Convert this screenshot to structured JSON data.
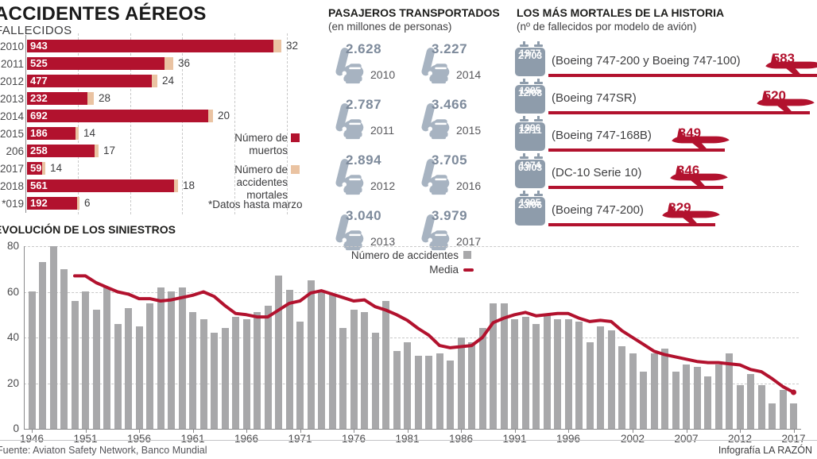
{
  "header": {
    "title": "ACCIDENTES AÉREOS"
  },
  "fallecidos": {
    "label": "FALLECIDOS",
    "legend": {
      "muertos_lines": [
        "Número de",
        "muertos"
      ],
      "accidentes_lines": [
        "Número de",
        "accidentes",
        "mortales"
      ]
    },
    "footnote": "*Datos hasta marzo"
  },
  "pasajeros": {
    "title": "PASAJEROS TRANSPORTADOS",
    "subtitle": "(en millones de personas)"
  },
  "mortales": {
    "title": "LOS MÁS MORTALES DE LA HISTORIA",
    "subtitle": "(nº de fallecidos por modelo de avión)"
  },
  "evolucion": {
    "title": "EVOLUCIÓN DE LOS SINIESTROS",
    "legend": {
      "accidentes": "Número de accidentes",
      "media": "Media"
    }
  },
  "footer": {
    "source": "Fuente: Aviaton Safety Network, Banco Mundial",
    "credit": "Infografía LA RAZÓN"
  },
  "colors": {
    "red": "#b2122e",
    "tan": "#eac3a2",
    "gray_bar": "#a8a8aa",
    "seat_icon": "#a7b3c1",
    "calendar": "#8e9cab",
    "passenger_number": "#7d8a9b"
  },
  "chart_data": [
    {
      "id": "fallecidos",
      "type": "bar",
      "orientation": "horizontal",
      "title": "FALLECIDOS",
      "categories": [
        "2010",
        "2011",
        "2012",
        "2013",
        "2014",
        "2015",
        "206",
        "2017",
        "2018",
        "019*"
      ],
      "series": [
        {
          "name": "Número de muertos",
          "values": [
            943,
            525,
            477,
            232,
            692,
            186,
            258,
            59,
            561,
            192
          ]
        },
        {
          "name": "Número de accidentes mortales",
          "values": [
            32,
            36,
            24,
            28,
            20,
            14,
            17,
            14,
            18,
            6
          ]
        }
      ],
      "xlim": [
        0,
        1100
      ],
      "gridlines_every": 200,
      "footnote": "*Datos hasta marzo"
    },
    {
      "id": "pasajeros",
      "type": "pictogram",
      "title": "PASAJEROS TRANSPORTADOS",
      "subtitle": "(en millones de personas)",
      "items": [
        {
          "value": "2.628",
          "year": "2010"
        },
        {
          "value": "3.227",
          "year": "2014"
        },
        {
          "value": "2.787",
          "year": "2011"
        },
        {
          "value": "3.466",
          "year": "2015"
        },
        {
          "value": "2.894",
          "year": "2012"
        },
        {
          "value": "3.705",
          "year": "2016"
        },
        {
          "value": "3.040",
          "year": "2013"
        },
        {
          "value": "3.979",
          "year": "2017"
        }
      ]
    },
    {
      "id": "mortales",
      "type": "bar",
      "orientation": "horizontal",
      "title": "LOS MÁS MORTALES DE LA HISTORIA",
      "subtitle": "(nº de fallecidos por modelo de avión)",
      "items": [
        {
          "date": "27/03",
          "year": "1977",
          "model": "(Boeing 747-200 y Boeing 747-100)",
          "value": 583
        },
        {
          "date": "12/08",
          "year": "1985",
          "model": "(Boeing 747SR)",
          "value": 520
        },
        {
          "date": "12/11",
          "year": "1996",
          "model": "(Boeing 747-168B)",
          "value": 349
        },
        {
          "date": "03/03",
          "year": "1974",
          "model": "(DC-10 Serie 10)",
          "value": 346
        },
        {
          "date": "23/06",
          "year": "1985",
          "model": "(Boeing 747-200)",
          "value": 329
        }
      ]
    },
    {
      "id": "evolucion",
      "type": "bar+line",
      "title": "EVOLUCIÓN DE LOS SINIESTROS",
      "bar_series": "Número de accidentes",
      "start_year": 1946,
      "end_year": 2017,
      "values": [
        60,
        73,
        80,
        70,
        56,
        60,
        52,
        62,
        46,
        53,
        45,
        55,
        62,
        60,
        62,
        51,
        48,
        42,
        44,
        49,
        48,
        51,
        54,
        67,
        61,
        47,
        65,
        60,
        59,
        44,
        52,
        51,
        42,
        56,
        34,
        38,
        32,
        32,
        33,
        30,
        40,
        38,
        44,
        55,
        55,
        48,
        49,
        46,
        50,
        48,
        48,
        47,
        38,
        45,
        43,
        36,
        33,
        25,
        33,
        35,
        25,
        28,
        27,
        23,
        28,
        33,
        19,
        24,
        19,
        11,
        17,
        11
      ],
      "media_series": "Media",
      "media_start_year": 1950,
      "media": [
        67,
        67,
        64,
        62,
        60,
        59,
        57,
        57,
        56,
        56.5,
        57.5,
        58.5,
        60,
        58,
        54,
        50.5,
        50,
        49,
        49,
        52,
        55,
        56,
        59.5,
        60.5,
        59,
        57.5,
        56,
        56.5,
        53.5,
        52,
        50,
        47.5,
        44,
        41,
        36.5,
        35.5,
        36,
        36.5,
        40,
        46.5,
        48.5,
        50,
        51,
        49.5,
        50,
        50.5,
        50.5,
        48.5,
        47,
        47.5,
        47,
        43,
        40,
        37,
        34,
        32.5,
        31.5,
        30.5,
        29.5,
        29,
        29,
        28.5,
        28,
        26,
        25,
        22,
        18.5,
        16
      ],
      "ylim": [
        0,
        80
      ],
      "y_ticks": [
        0,
        20,
        40,
        60,
        80
      ],
      "x_labels": [
        "1946",
        "1951",
        "1956",
        "1961",
        "1966",
        "1971",
        "1976",
        "1981",
        "1986",
        "1991",
        "1996",
        "2002",
        "2007",
        "2012",
        "2017"
      ],
      "x_label_indices": [
        0,
        5,
        10,
        15,
        20,
        25,
        30,
        35,
        40,
        45,
        50,
        56,
        61,
        66,
        71
      ],
      "grid": "dashed-horizontal",
      "legend_position": "top-center"
    }
  ]
}
